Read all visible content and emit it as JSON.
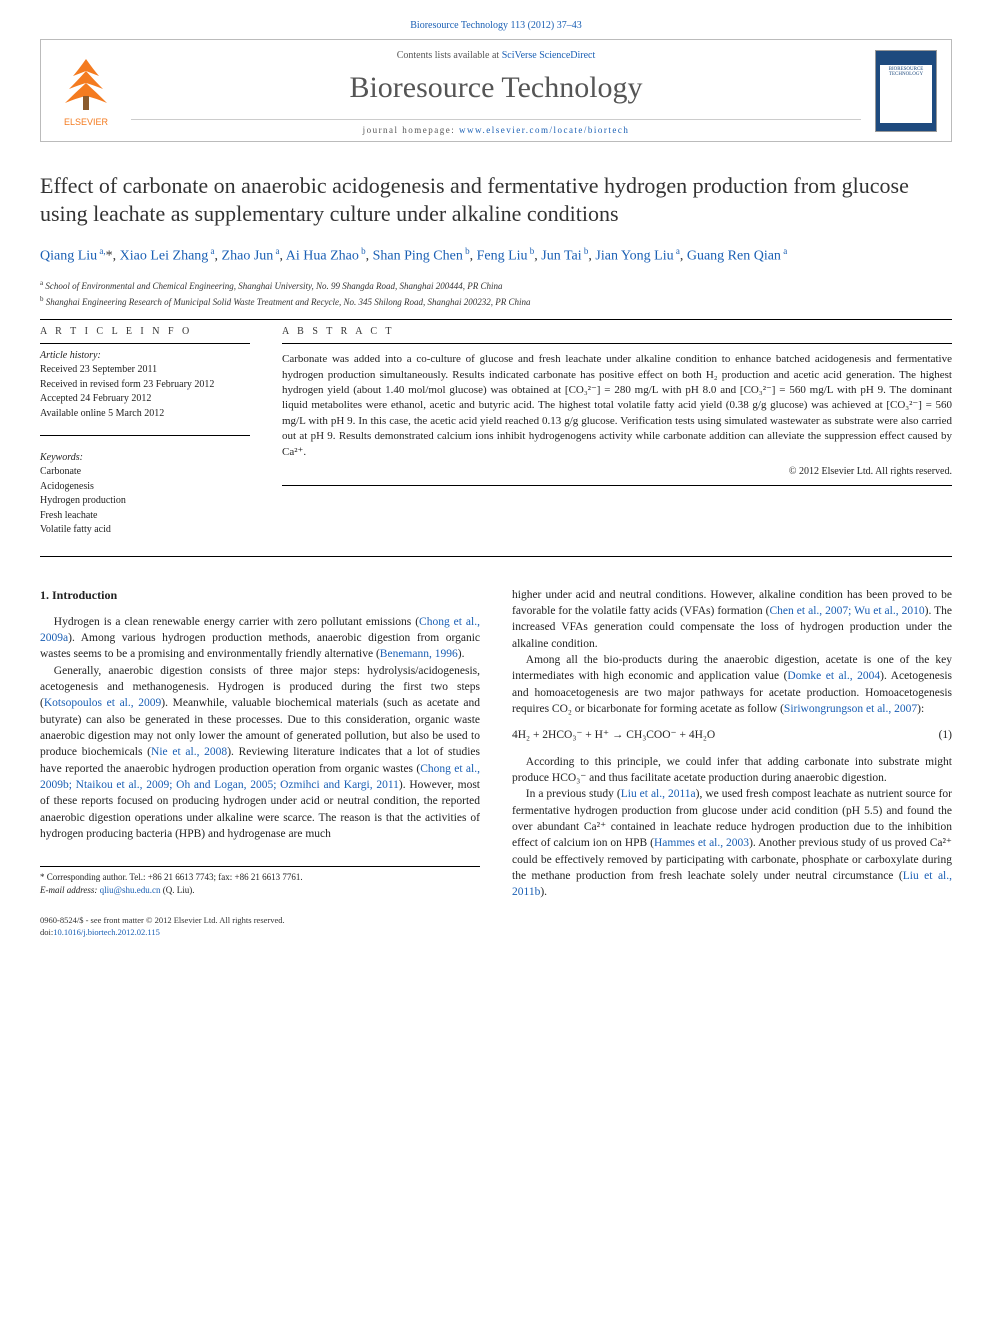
{
  "journal_ref": {
    "prefix": "Bioresource Technology 113 (2012) 37–43",
    "link_text": "Bioresource Technology 113 (2012) 37–43"
  },
  "masthead": {
    "contents_prefix": "Contents lists available at ",
    "contents_link": "SciVerse ScienceDirect",
    "journal_title": "Bioresource Technology",
    "homepage_prefix": "journal homepage: ",
    "homepage_link": "www.elsevier.com/locate/biortech",
    "elsevier_label": "ELSEVIER",
    "cover_label": "BIORESOURCE TECHNOLOGY"
  },
  "article": {
    "title": "Effect of carbonate on anaerobic acidogenesis and fermentative hydrogen production from glucose using leachate as supplementary culture under alkaline conditions",
    "authors_html": "Qiang Liu <sup>a,</sup>*, Xiao Lei Zhang <sup>a</sup>, Zhao Jun <sup>a</sup>, Ai Hua Zhao <sup>b</sup>, Shan Ping Chen <sup>b</sup>, Feng Liu <sup>b</sup>, Jun Tai <sup>b</sup>, Jian Yong Liu <sup>a</sup>, Guang Ren Qian <sup>a</sup>",
    "affiliations": [
      {
        "marker": "a",
        "text": "School of Environmental and Chemical Engineering, Shanghai University, No. 99 Shangda Road, Shanghai 200444, PR China"
      },
      {
        "marker": "b",
        "text": "Shanghai Engineering Research of Municipal Solid Waste Treatment and Recycle, No. 345 Shilong Road, Shanghai 200232, PR China"
      }
    ]
  },
  "info": {
    "heading": "A R T I C L E   I N F O",
    "history_label": "Article history:",
    "history": [
      "Received 23 September 2011",
      "Received in revised form 23 February 2012",
      "Accepted 24 February 2012",
      "Available online 5 March 2012"
    ],
    "keywords_label": "Keywords:",
    "keywords": [
      "Carbonate",
      "Acidogenesis",
      "Hydrogen production",
      "Fresh leachate",
      "Volatile fatty acid"
    ]
  },
  "abstract": {
    "heading": "A B S T R A C T",
    "text": "Carbonate was added into a co-culture of glucose and fresh leachate under alkaline condition to enhance batched acidogenesis and fermentative hydrogen production simultaneously. Results indicated carbonate has positive effect on both H₂ production and acetic acid generation. The highest hydrogen yield (about 1.40 mol/mol glucose) was obtained at [CO₃²⁻] = 280 mg/L with pH 8.0 and [CO₃²⁻] = 560 mg/L with pH 9. The dominant liquid metabolites were ethanol, acetic and butyric acid. The highest total volatile fatty acid yield (0.38 g/g glucose) was achieved at [CO₃²⁻] = 560 mg/L with pH 9. In this case, the acetic acid yield reached 0.13 g/g glucose. Verification tests using simulated wastewater as substrate were also carried out at pH 9. Results demonstrated calcium ions inhibit hydrogenogens activity while carbonate addition can alleviate the suppression effect caused by Ca²⁺.",
    "copyright": "© 2012 Elsevier Ltd. All rights reserved."
  },
  "body": {
    "section_heading": "1. Introduction",
    "left_paragraphs": [
      "Hydrogen is a clean renewable energy carrier with zero pollutant emissions (<span class=\"cite\">Chong et al., 2009a</span>). Among various hydrogen production methods, anaerobic digestion from organic wastes seems to be a promising and environmentally friendly alternative (<span class=\"cite\">Benemann, 1996</span>).",
      "Generally, anaerobic digestion consists of three major steps: hydrolysis/acidogenesis, acetogenesis and methanogenesis. Hydrogen is produced during the first two steps (<span class=\"cite\">Kotsopoulos et al., 2009</span>). Meanwhile, valuable biochemical materials (such as acetate and butyrate) can also be generated in these processes. Due to this consideration, organic waste anaerobic digestion may not only lower the amount of generated pollution, but also be used to produce biochemicals (<span class=\"cite\">Nie et al., 2008</span>). Reviewing literature indicates that a lot of studies have reported the anaerobic hydrogen production operation from organic wastes (<span class=\"cite\">Chong et al., 2009b; Ntaikou et al., 2009; Oh and Logan, 2005; Ozmihci and Kargi, 2011</span>). However, most of these reports focused on producing hydrogen under acid or neutral condition, the reported anaerobic digestion operations under alkaline were scarce. The reason is that the activities of hydrogen producing bacteria (HPB) and hydrogenase are much"
    ],
    "right_paragraphs_top": [
      "higher under acid and neutral conditions. However, alkaline condition has been proved to be favorable for the volatile fatty acids (VFAs) formation (<span class=\"cite\">Chen et al., 2007; Wu et al., 2010</span>). The increased VFAs generation could compensate the loss of hydrogen production under the alkaline condition.",
      "Among all the bio-products during the anaerobic digestion, acetate is one of the key intermediates with high economic and application value (<span class=\"cite\">Domke et al., 2004</span>). Acetogenesis and homoacetogenesis are two major pathways for acetate production. Homoacetogenesis requires CO₂ or bicarbonate for forming acetate as follow (<span class=\"cite\">Siriwongrungson et al., 2007</span>):"
    ],
    "equation": "4H₂ + 2HCO₃⁻ + H⁺ → CH₃COO⁻ + 4H₂O",
    "equation_num": "(1)",
    "right_paragraphs_bottom": [
      "According to this principle, we could infer that adding carbonate into substrate might produce HCO₃⁻ and thus facilitate acetate production during anaerobic digestion.",
      "In a previous study (<span class=\"cite\">Liu et al., 2011a</span>), we used fresh compost leachate as nutrient source for fermentative hydrogen production from glucose under acid condition (pH 5.5) and found the over abundant Ca²⁺ contained in leachate reduce hydrogen production due to the inhibition effect of calcium ion on HPB (<span class=\"cite\">Hammes et al., 2003</span>). Another previous study of us proved Ca²⁺ could be effectively removed by participating with carbonate, phosphate or carboxylate during the methane production from fresh leachate solely under neutral circumstance (<span class=\"cite\">Liu et al., 2011b</span>)."
    ]
  },
  "footnote": {
    "star": "*",
    "corr": "Corresponding author. Tel.: +86 21 6613 7743; fax: +86 21 6613 7761.",
    "email_label": "E-mail address:",
    "email": "qliu@shu.edu.cn",
    "email_suffix": "(Q. Liu)."
  },
  "bottom": {
    "line1": "0960-8524/$ - see front matter © 2012 Elsevier Ltd. All rights reserved.",
    "doi_prefix": "doi:",
    "doi": "10.1016/j.biortech.2012.02.115"
  },
  "colors": {
    "link": "#1a5fb4",
    "text": "#222222",
    "cover": "#1e4a7e"
  }
}
